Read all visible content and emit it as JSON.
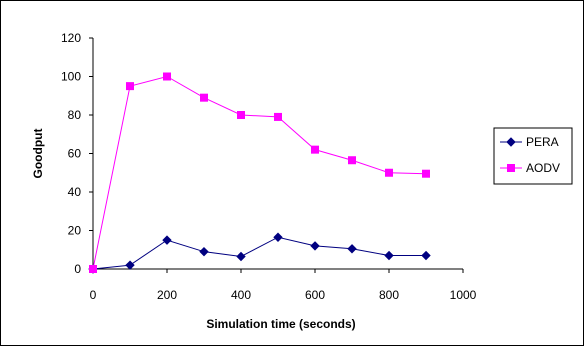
{
  "chart_data": {
    "type": "line",
    "title": "",
    "xlabel": "Simulation time (seconds)",
    "ylabel": "Goodput",
    "xlim": [
      0,
      1000
    ],
    "ylim": [
      0,
      120
    ],
    "xticks": [
      0,
      200,
      400,
      600,
      800,
      1000
    ],
    "yticks": [
      0,
      20,
      40,
      60,
      80,
      100,
      120
    ],
    "grid": false,
    "legend_position": "right",
    "x": [
      0,
      100,
      200,
      300,
      400,
      500,
      600,
      700,
      800,
      900
    ],
    "series": [
      {
        "name": "PERA",
        "marker": "diamond",
        "color": "#000080",
        "values": [
          0,
          2,
          15,
          9,
          6.5,
          16.5,
          12,
          10.5,
          7,
          7
        ]
      },
      {
        "name": "AODV",
        "marker": "square",
        "color": "#ff00ff",
        "values": [
          0,
          95,
          100,
          89,
          80,
          79,
          62,
          56.5,
          50,
          49.5
        ]
      }
    ]
  }
}
